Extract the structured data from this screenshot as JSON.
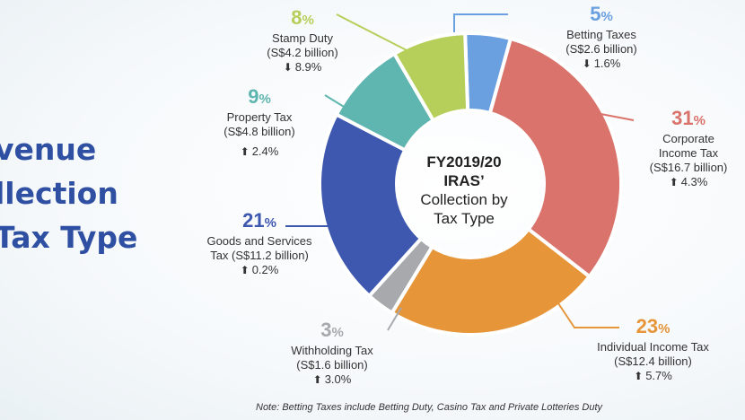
{
  "title_lines": [
    "venue",
    "llection",
    " Tax Type"
  ],
  "center": {
    "line1": "FY2019/20",
    "line2": "IRAS’",
    "line3": "Collection by",
    "line4": "Tax Type"
  },
  "note": "Note: Betting Taxes include Betting Duty, Casino Tax and Private Lotteries Duty",
  "chart_data": {
    "type": "pie",
    "donut": true,
    "unit": "S$ billion",
    "categories": [
      "Betting Taxes",
      "Corporate Income Tax",
      "Individual Income Tax",
      "Withholding Tax",
      "Goods and Services Tax",
      "Property Tax",
      "Stamp Duty"
    ],
    "values": [
      2.6,
      16.7,
      12.4,
      1.6,
      11.2,
      4.8,
      4.2
    ],
    "slices": [
      {
        "name_lines": [
          "Betting Taxes"
        ],
        "pct": "5",
        "amount": "(S$2.6 billion)",
        "change": "1.6%",
        "direction": "down",
        "color": "#6a9fe0"
      },
      {
        "name_lines": [
          "Corporate",
          "Income Tax"
        ],
        "pct": "31",
        "amount": "(S$16.7 billion)",
        "change": "4.3%",
        "direction": "up",
        "color": "#d9736b"
      },
      {
        "name_lines": [
          "Individual Income Tax"
        ],
        "pct": "23",
        "amount": "(S$12.4 billion)",
        "change": "5.7%",
        "direction": "up",
        "color": "#e69538"
      },
      {
        "name_lines": [
          "Withholding Tax"
        ],
        "pct": "3",
        "amount": "(S$1.6 billion)",
        "change": "3.0%",
        "direction": "up",
        "color": "#a7a9ac"
      },
      {
        "name_lines": [
          "Goods and Services"
        ],
        "pct": "21",
        "amount": "Tax (S$11.2 billion)",
        "change": "0.2%",
        "direction": "up",
        "color": "#3e58b0"
      },
      {
        "name_lines": [
          "Property Tax"
        ],
        "pct": "9",
        "amount": "(S$4.8 billion)",
        "change": "2.4%",
        "direction": "up",
        "color": "#5fb5b0"
      },
      {
        "name_lines": [
          "Stamp Duty"
        ],
        "pct": "8",
        "amount": "(S$4.2 billion)",
        "change": "8.9%",
        "direction": "down",
        "color": "#b5cf5a"
      }
    ]
  }
}
